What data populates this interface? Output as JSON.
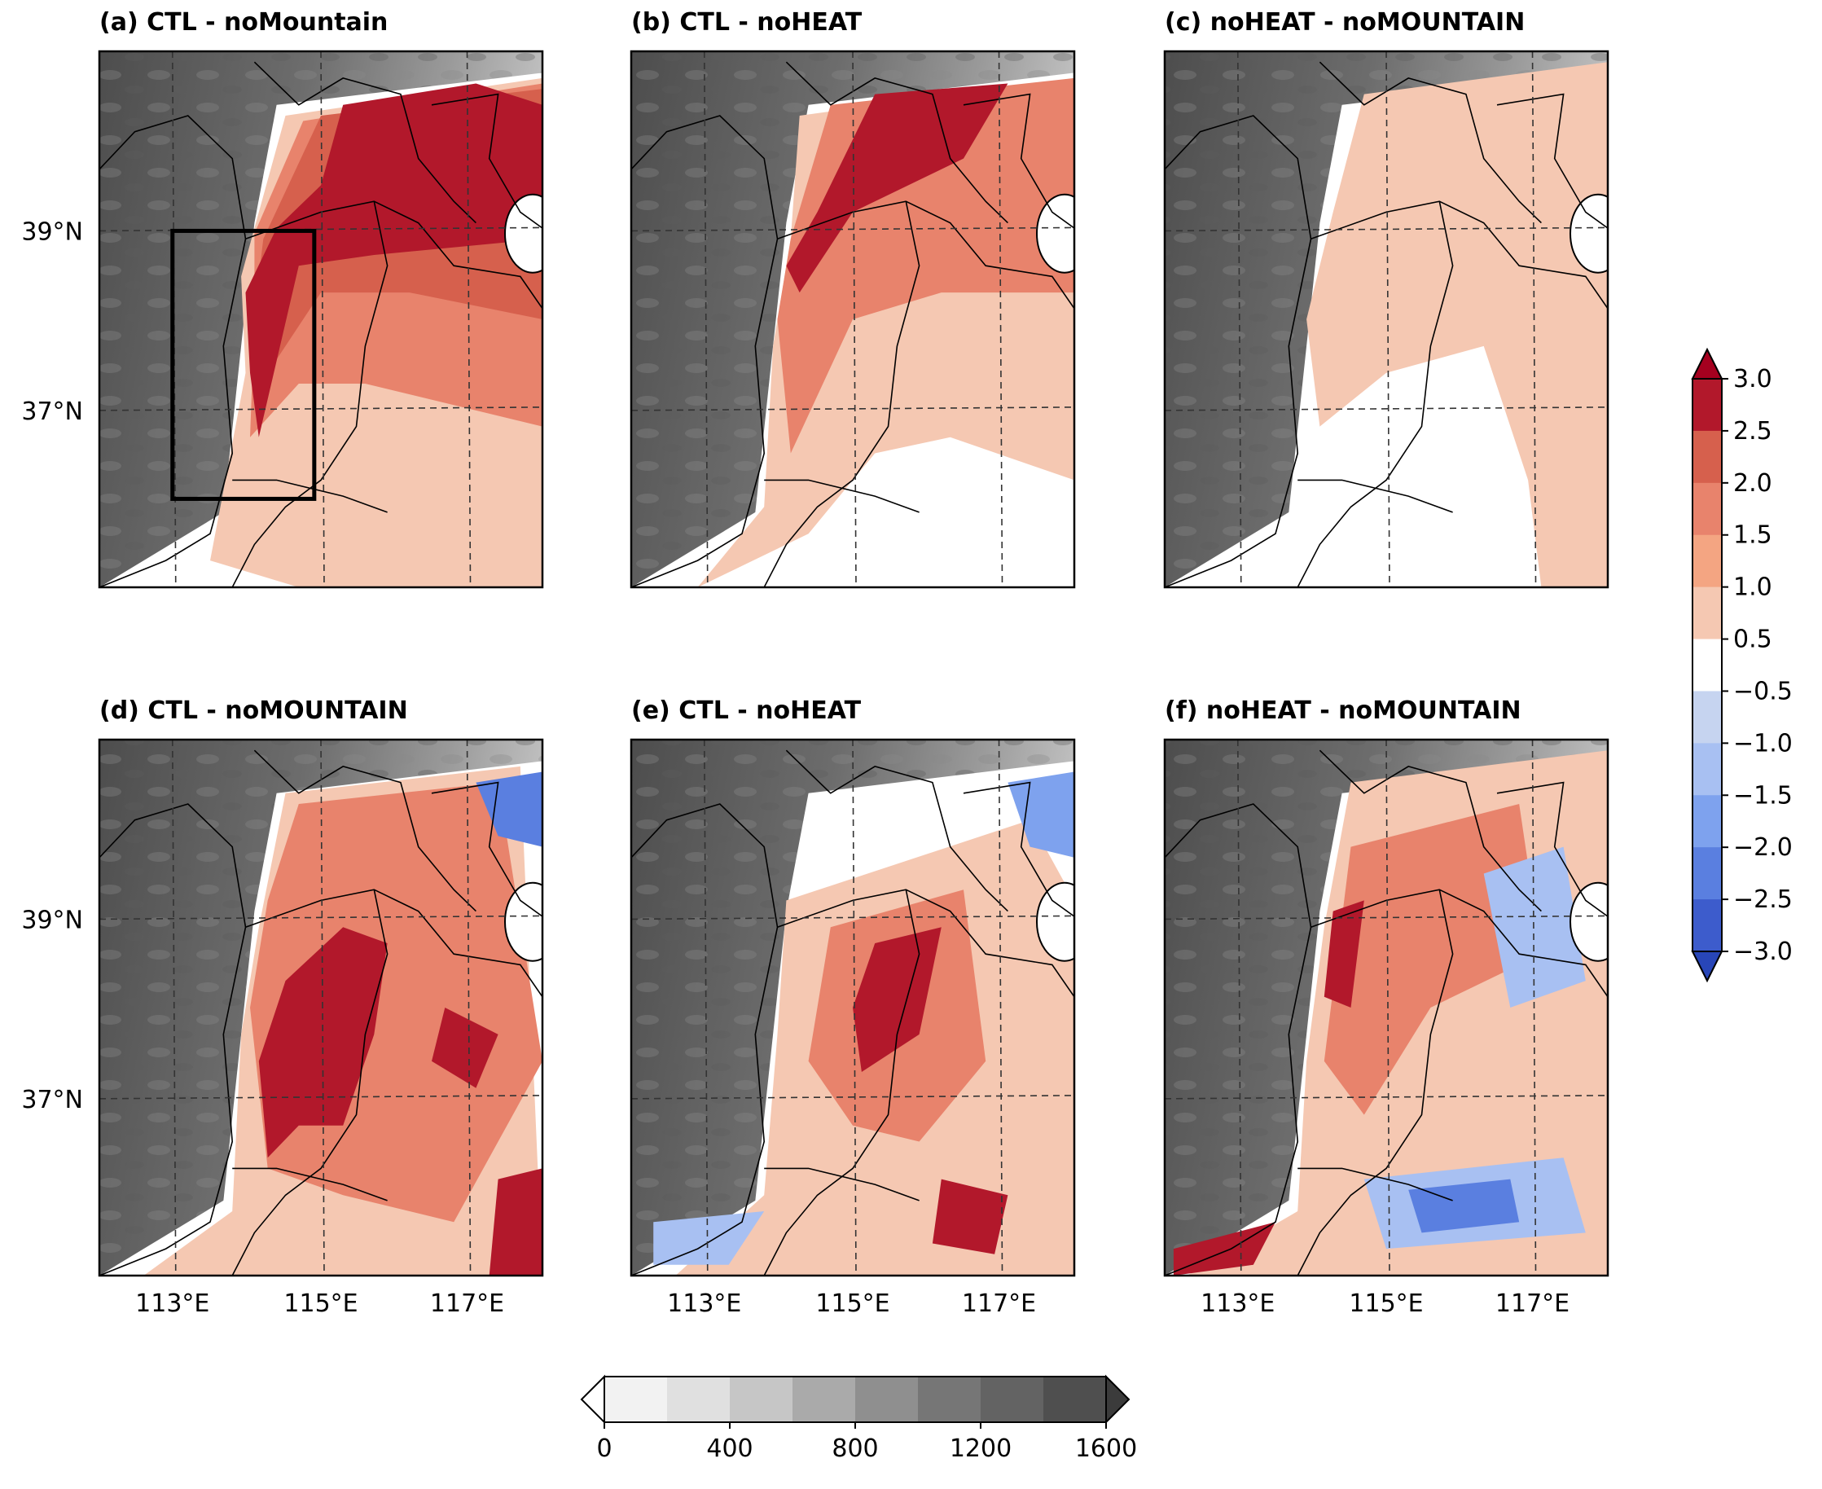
{
  "panels": [
    {
      "id": "a",
      "title": "(a) CTL - noMountain",
      "show_lat_labels": true,
      "show_lon_labels": false,
      "box": true
    },
    {
      "id": "b",
      "title": "(b) CTL - noHEAT",
      "show_lat_labels": false,
      "show_lon_labels": false,
      "box": false
    },
    {
      "id": "c",
      "title": "(c) noHEAT - noMOUNTAIN",
      "show_lat_labels": false,
      "show_lon_labels": false,
      "box": false
    },
    {
      "id": "d",
      "title": "(d) CTL - noMOUNTAIN",
      "show_lat_labels": true,
      "show_lon_labels": true,
      "box": false
    },
    {
      "id": "e",
      "title": "(e) CTL - noHEAT",
      "show_lat_labels": false,
      "show_lon_labels": true,
      "box": false
    },
    {
      "id": "f",
      "title": "(f) noHEAT - noMOUNTAIN",
      "show_lat_labels": false,
      "show_lon_labels": true,
      "box": false
    }
  ],
  "lat_labels": [
    "39°N",
    "37°N"
  ],
  "lon_labels": [
    "113°E",
    "115°E",
    "117°E"
  ],
  "anomaly_colorbar": {
    "labels": [
      "3.0",
      "2.5",
      "2.0",
      "1.5",
      "1.0",
      "0.5",
      "−0.5",
      "−1.0",
      "−1.5",
      "−2.0",
      "−2.5",
      "−3.0"
    ],
    "colors": [
      "#b2182b",
      "#d6604d",
      "#e8836c",
      "#f4a582",
      "#f5c8b2",
      "#ffffff",
      "#c6d4f0",
      "#a8c0f2",
      "#7ea2ee",
      "#5a7fe0",
      "#3d5ccc"
    ],
    "extend_top": "#a5001f",
    "extend_bottom": "#2846b8"
  },
  "terrain_colorbar": {
    "labels": [
      "0",
      "400",
      "800",
      "1200",
      "1600"
    ],
    "colors": [
      "#f2f2f2",
      "#e0e0e0",
      "#c6c6c6",
      "#aaaaaa",
      "#8f8f8f",
      "#767676",
      "#636363",
      "#4f4f4f"
    ],
    "extend_left": "#ffffff",
    "extend_right": "#3b3b3b"
  }
}
